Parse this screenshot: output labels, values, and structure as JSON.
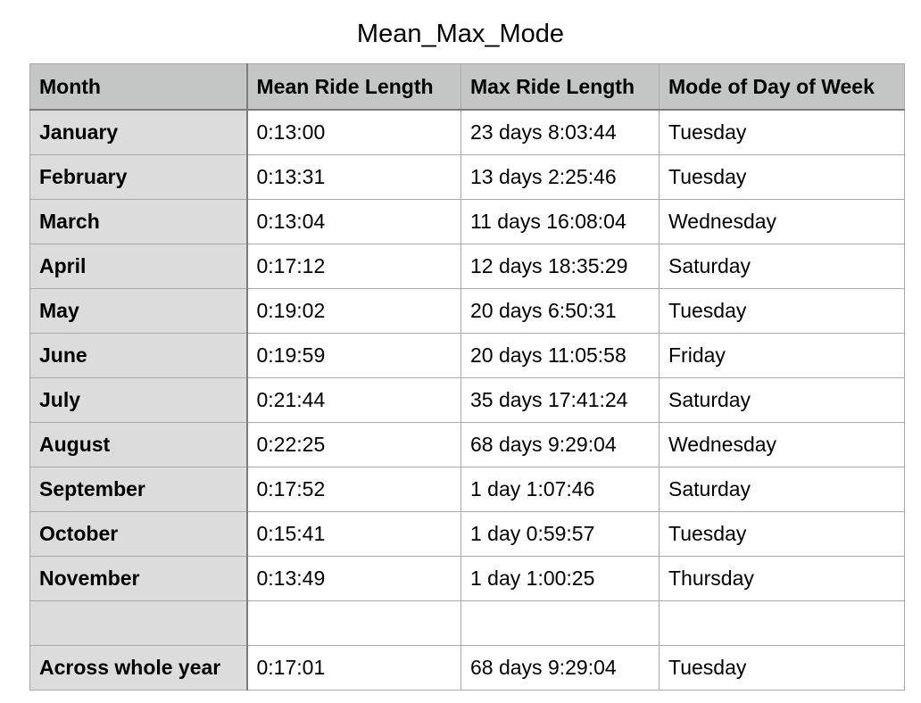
{
  "chart_data": {
    "type": "table",
    "title": "Mean_Max_Mode",
    "columns": [
      "Month",
      "Mean Ride Length",
      "Max Ride Length",
      "Mode of Day of Week"
    ],
    "rows": [
      [
        "January",
        "0:13:00",
        "23 days 8:03:44",
        "Tuesday"
      ],
      [
        "February",
        "0:13:31",
        "13 days 2:25:46",
        "Tuesday"
      ],
      [
        "March",
        "0:13:04",
        "11 days 16:08:04",
        "Wednesday"
      ],
      [
        "April",
        "0:17:12",
        "12 days 18:35:29",
        "Saturday"
      ],
      [
        "May",
        "0:19:02",
        "20 days 6:50:31",
        "Tuesday"
      ],
      [
        "June",
        "0:19:59",
        "20 days 11:05:58",
        "Friday"
      ],
      [
        "July",
        "0:21:44",
        "35 days 17:41:24",
        "Saturday"
      ],
      [
        "August",
        "0:22:25",
        "68 days 9:29:04",
        "Wednesday"
      ],
      [
        "September",
        "0:17:52",
        "1 day 1:07:46",
        "Saturday"
      ],
      [
        "October",
        "0:15:41",
        "1 day 0:59:57",
        "Tuesday"
      ],
      [
        "November",
        "0:13:49",
        "1 day 1:00:25",
        "Thursday"
      ],
      [
        "",
        "",
        "",
        ""
      ],
      [
        "Across whole year",
        "0:17:01",
        "68 days 9:29:04",
        "Tuesday"
      ]
    ]
  },
  "colors": {
    "header_bg": "#c4c6c5",
    "row_header_bg": "#dcdcdc",
    "grid_line": "#a9a9a9",
    "heavy_line": "#7b7b7b"
  }
}
